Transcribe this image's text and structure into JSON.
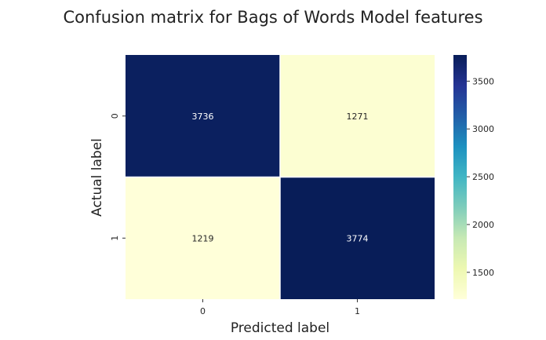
{
  "chart_data": {
    "type": "heatmap",
    "title": "Confusion matrix for Bags of Words Model features",
    "xlabel": "Predicted label",
    "ylabel": "Actual label",
    "x_categories": [
      "0",
      "1"
    ],
    "y_categories": [
      "0",
      "1"
    ],
    "values": [
      [
        3736,
        1271
      ],
      [
        1219,
        3774
      ]
    ],
    "colormap": "YlGnBu",
    "colorbar": {
      "min": 1219,
      "max": 3774,
      "ticks": [
        1500,
        2000,
        2500,
        3000,
        3500
      ]
    },
    "colors": {
      "low": "#ffffd9",
      "high": "#081d58"
    }
  }
}
